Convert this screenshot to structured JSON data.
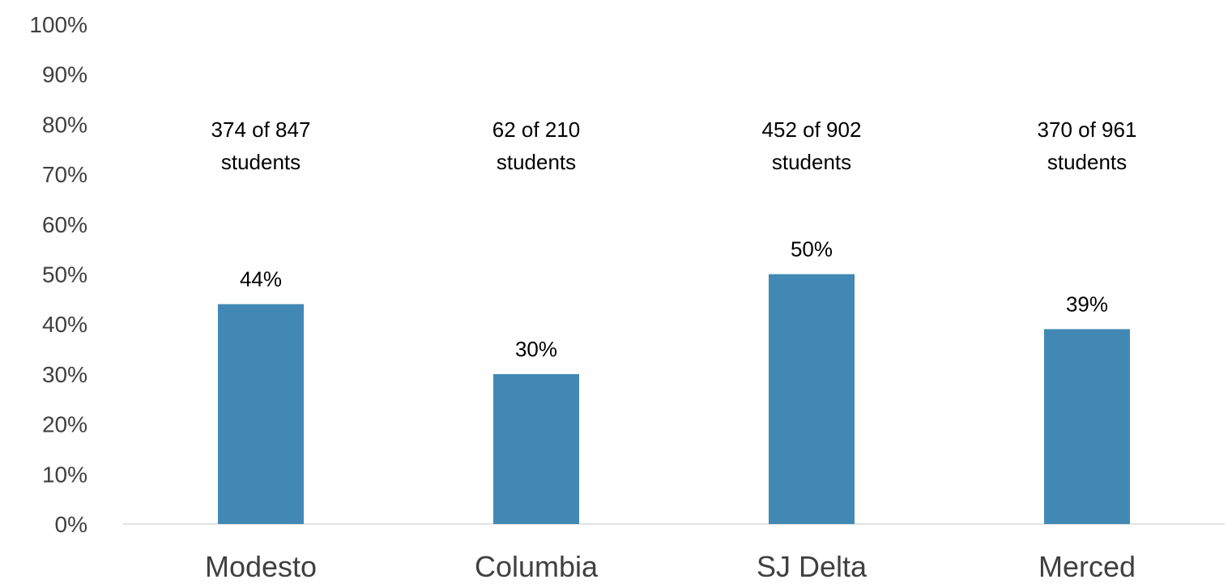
{
  "chart_data": {
    "type": "bar",
    "categories": [
      "Modesto",
      "Columbia",
      "SJ Delta",
      "Merced"
    ],
    "values": [
      44,
      30,
      50,
      39
    ],
    "value_labels": [
      "44%",
      "30%",
      "50%",
      "39%"
    ],
    "annotations": [
      [
        "374 of 847",
        "students"
      ],
      [
        "62 of 210",
        "students"
      ],
      [
        "452 of 902",
        "students"
      ],
      [
        "370 of 961",
        "students"
      ]
    ],
    "yticks": [
      "0%",
      "10%",
      "20%",
      "30%",
      "40%",
      "50%",
      "60%",
      "70%",
      "80%",
      "90%",
      "100%"
    ],
    "ylim": [
      0,
      100
    ],
    "grid": false,
    "legend": "none",
    "bar_color": "#4189b4"
  }
}
